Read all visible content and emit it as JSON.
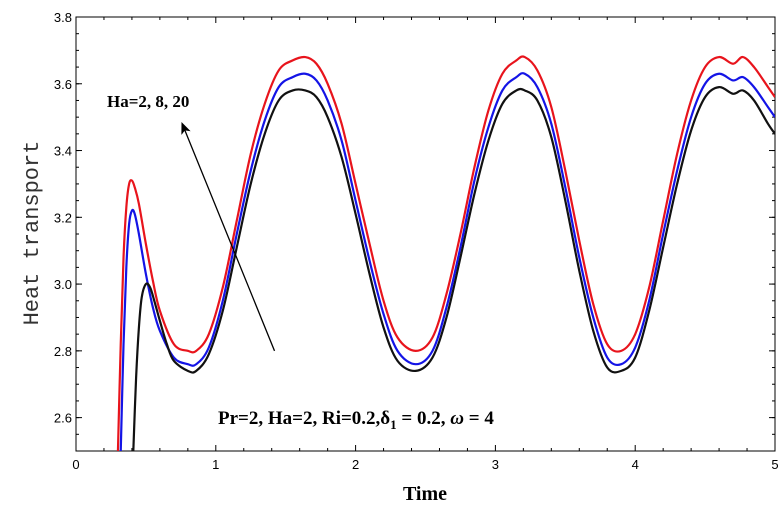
{
  "chart_data": {
    "type": "line",
    "title": "",
    "xlabel": "Time",
    "ylabel": "Heat transport",
    "xlim": [
      0,
      5
    ],
    "ylim": [
      2.5,
      3.8
    ],
    "x_ticks": [
      0,
      1,
      2,
      3,
      4,
      5
    ],
    "x_tick_labels": [
      "0",
      "1",
      "2",
      "3",
      "4",
      "5"
    ],
    "y_ticks": [
      2.6,
      2.8,
      3.0,
      3.2,
      3.4,
      3.6,
      3.8
    ],
    "y_tick_labels": [
      "2.6",
      "2.8",
      "3.0",
      "3.2",
      "3.4",
      "3.6",
      "3.8"
    ],
    "grid": false,
    "legend": "none",
    "series": [
      {
        "color": "#e8141c",
        "x": [
          0.3,
          0.32,
          0.34,
          0.36,
          0.38,
          0.4,
          0.42,
          0.45,
          0.5,
          0.55,
          0.6,
          0.7,
          0.8,
          0.86,
          0.95,
          1.05,
          1.15,
          1.25,
          1.35,
          1.45,
          1.55,
          1.64,
          1.72,
          1.8,
          1.9,
          2.0,
          2.1,
          2.2,
          2.3,
          2.43,
          2.55,
          2.65,
          2.75,
          2.85,
          2.95,
          3.05,
          3.15,
          3.21,
          3.3,
          3.4,
          3.5,
          3.6,
          3.7,
          3.8,
          3.9,
          4.0,
          4.1,
          4.2,
          4.3,
          4.4,
          4.5,
          4.6,
          4.7,
          4.77,
          4.85,
          4.95,
          5.0
        ],
        "y": [
          2.5,
          2.82,
          3.08,
          3.23,
          3.3,
          3.31,
          3.29,
          3.24,
          3.12,
          3.01,
          2.92,
          2.82,
          2.8,
          2.8,
          2.85,
          2.99,
          3.19,
          3.39,
          3.54,
          3.64,
          3.67,
          3.68,
          3.66,
          3.6,
          3.48,
          3.3,
          3.12,
          2.95,
          2.84,
          2.8,
          2.84,
          2.97,
          3.15,
          3.35,
          3.52,
          3.63,
          3.67,
          3.68,
          3.64,
          3.53,
          3.34,
          3.13,
          2.94,
          2.82,
          2.8,
          2.85,
          2.99,
          3.19,
          3.39,
          3.55,
          3.65,
          3.68,
          3.66,
          3.68,
          3.65,
          3.59,
          3.56
        ]
      },
      {
        "color": "#1414e6",
        "x": [
          0.32,
          0.34,
          0.36,
          0.38,
          0.4,
          0.42,
          0.45,
          0.5,
          0.55,
          0.6,
          0.7,
          0.8,
          0.86,
          0.95,
          1.05,
          1.15,
          1.25,
          1.35,
          1.45,
          1.55,
          1.64,
          1.72,
          1.8,
          1.9,
          2.0,
          2.1,
          2.2,
          2.3,
          2.43,
          2.55,
          2.65,
          2.75,
          2.85,
          2.95,
          3.05,
          3.15,
          3.21,
          3.3,
          3.4,
          3.5,
          3.6,
          3.7,
          3.8,
          3.9,
          4.0,
          4.1,
          4.2,
          4.3,
          4.4,
          4.5,
          4.6,
          4.7,
          4.77,
          4.85,
          4.95,
          5.0
        ],
        "y": [
          2.5,
          2.82,
          3.05,
          3.18,
          3.22,
          3.21,
          3.15,
          3.03,
          2.93,
          2.86,
          2.78,
          2.76,
          2.76,
          2.81,
          2.95,
          3.15,
          3.34,
          3.49,
          3.59,
          3.62,
          3.63,
          3.61,
          3.55,
          3.43,
          3.25,
          3.07,
          2.91,
          2.8,
          2.76,
          2.8,
          2.93,
          3.11,
          3.31,
          3.47,
          3.58,
          3.62,
          3.63,
          3.59,
          3.48,
          3.29,
          3.08,
          2.9,
          2.78,
          2.76,
          2.81,
          2.95,
          3.15,
          3.34,
          3.5,
          3.6,
          3.63,
          3.61,
          3.62,
          3.59,
          3.53,
          3.5
        ]
      },
      {
        "color": "#111111",
        "x": [
          0.41,
          0.43,
          0.45,
          0.47,
          0.5,
          0.53,
          0.56,
          0.6,
          0.65,
          0.7,
          0.8,
          0.86,
          0.95,
          1.05,
          1.15,
          1.25,
          1.35,
          1.45,
          1.55,
          1.64,
          1.72,
          1.8,
          1.9,
          2.0,
          2.1,
          2.2,
          2.3,
          2.43,
          2.55,
          2.65,
          2.75,
          2.85,
          2.95,
          3.05,
          3.15,
          3.21,
          3.3,
          3.4,
          3.5,
          3.6,
          3.7,
          3.8,
          3.9,
          4.0,
          4.1,
          4.2,
          4.3,
          4.4,
          4.5,
          4.6,
          4.7,
          4.77,
          4.85,
          4.95,
          5.0
        ],
        "y": [
          2.5,
          2.72,
          2.87,
          2.96,
          3.0,
          2.99,
          2.95,
          2.89,
          2.82,
          2.77,
          2.74,
          2.74,
          2.79,
          2.92,
          3.11,
          3.3,
          3.45,
          3.55,
          3.58,
          3.58,
          3.56,
          3.5,
          3.38,
          3.21,
          3.03,
          2.87,
          2.77,
          2.74,
          2.78,
          2.9,
          3.08,
          3.27,
          3.43,
          3.54,
          3.58,
          3.58,
          3.55,
          3.44,
          3.25,
          3.04,
          2.86,
          2.75,
          2.74,
          2.78,
          2.92,
          3.11,
          3.3,
          3.46,
          3.56,
          3.59,
          3.57,
          3.58,
          3.55,
          3.48,
          3.45
        ]
      }
    ],
    "annotations": {
      "arrow_label": "Ha=2, 8, 20",
      "params_label": "Pr=2, Ha=2, Ri=0.2,δ",
      "params_sub": "1",
      "params_tail": " = 0.2, ",
      "params_omega": "ω",
      "params_end": " = 4",
      "arrow": {
        "from": [
          1.42,
          2.8
        ],
        "to": [
          0.76,
          3.48
        ]
      }
    }
  }
}
